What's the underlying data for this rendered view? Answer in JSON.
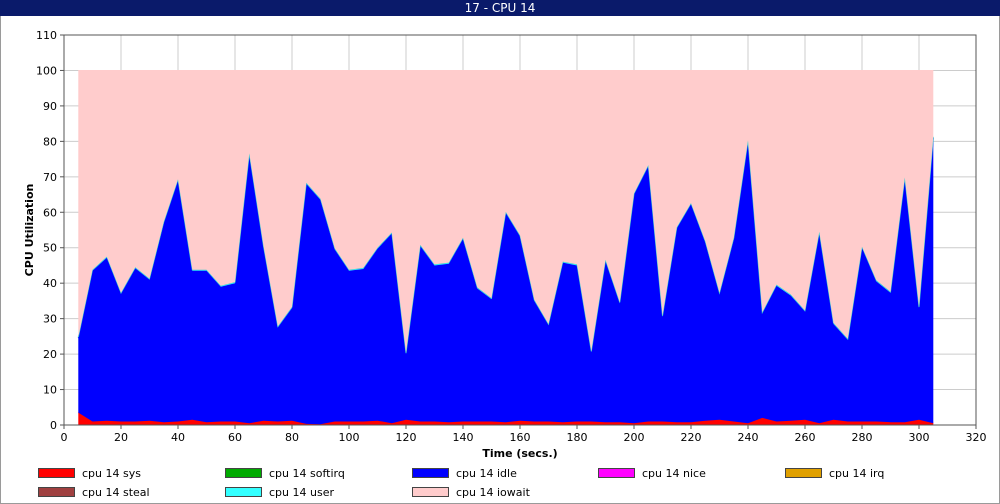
{
  "window": {
    "title": "17 - CPU 14"
  },
  "chart_data": {
    "type": "area",
    "stacked": true,
    "title": "",
    "xlabel": "Time (secs.)",
    "ylabel": "CPU Utilization",
    "xlim": [
      0,
      320
    ],
    "ylim": [
      0,
      110
    ],
    "xticks": [
      0,
      20,
      40,
      60,
      80,
      100,
      120,
      140,
      160,
      180,
      200,
      220,
      240,
      260,
      280,
      300,
      320
    ],
    "yticks": [
      0,
      10,
      20,
      30,
      40,
      50,
      60,
      70,
      80,
      90,
      100,
      110
    ],
    "grid": true,
    "legend_position": "bottom",
    "x": [
      5,
      10,
      15,
      20,
      25,
      30,
      35,
      40,
      45,
      50,
      55,
      60,
      65,
      70,
      75,
      80,
      85,
      90,
      95,
      100,
      105,
      110,
      115,
      120,
      125,
      130,
      135,
      140,
      145,
      150,
      155,
      160,
      165,
      170,
      175,
      180,
      185,
      190,
      195,
      200,
      205,
      210,
      215,
      220,
      225,
      230,
      235,
      240,
      245,
      250,
      255,
      260,
      265,
      270,
      275,
      280,
      285,
      290,
      295,
      300,
      305
    ],
    "series": [
      {
        "name": "cpu 14 sys",
        "color": "#ff0000",
        "values": [
          3.5,
          1,
          1.2,
          1,
          1,
          1.2,
          0.8,
          1,
          1.5,
          0.8,
          1,
          1,
          0.5,
          1.2,
          1,
          1.2,
          0.3,
          0.2,
          1,
          1,
          1,
          1.2,
          0.5,
          1.5,
          1,
          1,
          0.8,
          1,
          1,
          1,
          0.8,
          1.2,
          1,
          1,
          0.8,
          1,
          1,
          0.8,
          0.8,
          0.5,
          1,
          1,
          0.8,
          0.8,
          1.2,
          1.5,
          1,
          0.5,
          2,
          1,
          1.2,
          1.5,
          0.5,
          1.5,
          1,
          1,
          1,
          0.8,
          0.8,
          1.5,
          0.5
        ]
      },
      {
        "name": "cpu 14 softirq",
        "color": "#00aa00",
        "values": [
          0,
          0,
          0,
          0,
          0,
          0,
          0,
          0,
          0,
          0,
          0,
          0,
          0,
          0,
          0,
          0,
          0,
          0,
          0,
          0,
          0,
          0,
          0,
          0,
          0,
          0,
          0,
          0,
          0,
          0,
          0,
          0,
          0,
          0,
          0,
          0,
          0,
          0,
          0,
          0,
          0,
          0,
          0,
          0,
          0,
          0,
          0,
          0,
          0,
          0,
          0,
          0,
          0,
          0,
          0,
          0,
          0,
          0,
          0,
          0,
          0
        ]
      },
      {
        "name": "cpu 14 idle",
        "color": "#0000ff",
        "values": [
          21,
          42.5,
          46,
          36,
          43.2,
          39.8,
          56.2,
          68,
          42,
          42.7,
          38,
          39,
          75.8,
          49,
          26.5,
          31.8,
          67.7,
          63.3,
          48.5,
          42.5,
          43,
          48.5,
          53.5,
          18.5,
          49.5,
          44,
          44.7,
          51.5,
          37.5,
          34.5,
          59,
          52,
          34,
          27.2,
          45,
          44,
          19.5,
          45.5,
          33.5,
          64.5,
          72,
          29.5,
          54.7,
          61.5,
          50.3,
          35.5,
          51.5,
          79.5,
          29.5,
          38.3,
          35.3,
          30.5,
          53.7,
          27,
          23,
          49,
          39.5,
          36.5,
          68.7,
          31.5,
          80.5
        ]
      },
      {
        "name": "cpu 14 nice",
        "color": "#ff00ff",
        "values": [
          0,
          0,
          0,
          0,
          0,
          0,
          0,
          0,
          0,
          0,
          0,
          0,
          0,
          0,
          0,
          0,
          0,
          0,
          0,
          0,
          0,
          0,
          0,
          0,
          0,
          0,
          0,
          0,
          0,
          0,
          0,
          0,
          0,
          0,
          0,
          0,
          0,
          0,
          0,
          0,
          0,
          0,
          0,
          0,
          0,
          0,
          0,
          0,
          0,
          0,
          0,
          0,
          0,
          0,
          0,
          0,
          0,
          0,
          0,
          0,
          0
        ]
      },
      {
        "name": "cpu 14 irq",
        "color": "#e0a000",
        "values": [
          0,
          0,
          0,
          0,
          0,
          0,
          0,
          0,
          0,
          0,
          0,
          0,
          0,
          0,
          0,
          0,
          0,
          0,
          0,
          0,
          0,
          0,
          0,
          0,
          0,
          0,
          0,
          0,
          0,
          0,
          0,
          0,
          0,
          0,
          0,
          0,
          0,
          0,
          0,
          0,
          0,
          0,
          0,
          0,
          0,
          0,
          0,
          0,
          0,
          0,
          0,
          0,
          0,
          0,
          0,
          0,
          0,
          0,
          0,
          0,
          0
        ]
      },
      {
        "name": "cpu 14 steal",
        "color": "#a04040",
        "values": [
          0,
          0,
          0,
          0,
          0,
          0,
          0,
          0,
          0,
          0,
          0,
          0,
          0,
          0,
          0,
          0,
          0,
          0,
          0,
          0,
          0,
          0,
          0,
          0,
          0,
          0,
          0,
          0,
          0,
          0,
          0,
          0,
          0,
          0,
          0,
          0,
          0,
          0,
          0,
          0,
          0,
          0,
          0,
          0,
          0,
          0,
          0,
          0,
          0,
          0,
          0,
          0,
          0,
          0,
          0,
          0,
          0,
          0,
          0,
          0,
          0
        ]
      },
      {
        "name": "cpu 14 user",
        "color": "#33ffff",
        "values": [
          0.3,
          0.3,
          0.3,
          0.3,
          0.3,
          0.3,
          0.3,
          0.3,
          0.3,
          0.3,
          0.3,
          0.3,
          0.3,
          0.3,
          0.3,
          0.3,
          0.3,
          0.3,
          0.3,
          0.3,
          0.3,
          0.3,
          0.3,
          0.3,
          0.3,
          0.3,
          0.3,
          0.3,
          0.3,
          0.3,
          0.3,
          0.3,
          0.3,
          0.3,
          0.3,
          0.3,
          0.3,
          0.3,
          0.3,
          0.3,
          0.3,
          0.3,
          0.3,
          0.3,
          0.3,
          0.3,
          0.3,
          0.3,
          0.3,
          0.3,
          0.3,
          0.3,
          0.3,
          0.3,
          0.3,
          0.3,
          0.3,
          0.3,
          0.3,
          0.3,
          0.3
        ]
      },
      {
        "name": "cpu 14 iowait",
        "color": "#ffcccc",
        "values": [
          75.2,
          56.2,
          52.5,
          62.7,
          55.5,
          58.7,
          42.7,
          30.7,
          56.2,
          56.2,
          60.7,
          59.7,
          23.4,
          49.5,
          72.2,
          66.7,
          31.7,
          36.2,
          50.2,
          56.2,
          55.7,
          50,
          45.7,
          79.7,
          49.2,
          54.7,
          54.2,
          47.2,
          61.2,
          64.2,
          39.9,
          46.5,
          64.7,
          71.5,
          53.9,
          54.7,
          79.2,
          53.4,
          65.4,
          34.7,
          26.7,
          69.2,
          44.2,
          37.4,
          48.2,
          62.7,
          47.2,
          19.7,
          68.2,
          60.4,
          63.2,
          67.7,
          45.5,
          71.2,
          75.7,
          49.7,
          59.2,
          62.4,
          30.2,
          66.7,
          18.7
        ]
      }
    ]
  }
}
